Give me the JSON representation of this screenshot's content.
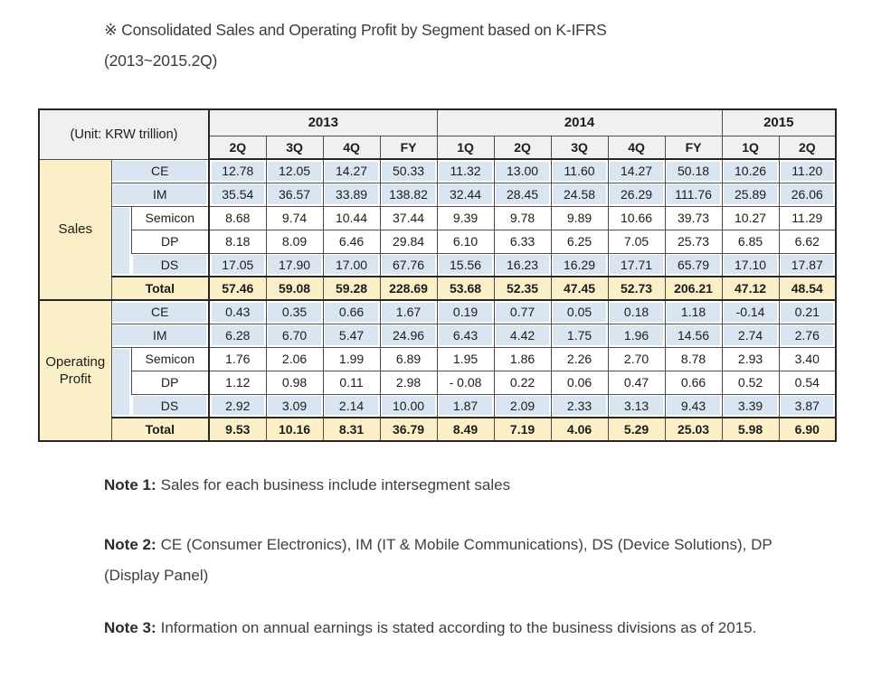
{
  "title": "※ Consolidated Sales and Operating Profit by Segment based on K-IFRS (2013~2015.2Q)",
  "table": {
    "unit_label": "(Unit: KRW trillion)",
    "year_groups": [
      {
        "label": "2013",
        "quarters": [
          "2Q",
          "3Q",
          "4Q",
          "FY"
        ]
      },
      {
        "label": "2014",
        "quarters": [
          "1Q",
          "2Q",
          "3Q",
          "4Q",
          "FY"
        ]
      },
      {
        "label": "2015",
        "quarters": [
          "1Q",
          "2Q"
        ]
      }
    ],
    "sections": [
      {
        "key": "sales",
        "label": "Sales",
        "rows": [
          {
            "segment": "CE",
            "style": "blue",
            "span": "full",
            "values": [
              "12.78",
              "12.05",
              "14.27",
              "50.33",
              "11.32",
              "13.00",
              "11.60",
              "14.27",
              "50.18",
              "10.26",
              "11.20"
            ]
          },
          {
            "segment": "IM",
            "style": "blue",
            "span": "full",
            "values": [
              "35.54",
              "36.57",
              "33.89",
              "138.82",
              "32.44",
              "28.45",
              "24.58",
              "26.29",
              "111.76",
              "25.89",
              "26.06"
            ]
          },
          {
            "segment": "Semicon",
            "style": "white",
            "span": "sub",
            "indent_start": true,
            "values": [
              "8.68",
              "9.74",
              "10.44",
              "37.44",
              "9.39",
              "9.78",
              "9.89",
              "10.66",
              "39.73",
              "10.27",
              "11.29"
            ]
          },
          {
            "segment": "DP",
            "style": "white",
            "span": "sub",
            "values": [
              "8.18",
              "8.09",
              "6.46",
              "29.84",
              "6.10",
              "6.33",
              "6.25",
              "7.05",
              "25.73",
              "6.85",
              "6.62"
            ]
          },
          {
            "segment": "DS",
            "style": "blue",
            "span": "sub-flush",
            "values": [
              "17.05",
              "17.90",
              "17.00",
              "67.76",
              "15.56",
              "16.23",
              "16.29",
              "17.71",
              "65.79",
              "17.10",
              "17.87"
            ]
          },
          {
            "segment": "Total",
            "style": "total",
            "span": "full",
            "values": [
              "57.46",
              "59.08",
              "59.28",
              "228.69",
              "53.68",
              "52.35",
              "47.45",
              "52.73",
              "206.21",
              "47.12",
              "48.54"
            ]
          }
        ]
      },
      {
        "key": "operating-profit",
        "label": "Operating Profit",
        "rows": [
          {
            "segment": "CE",
            "style": "blue",
            "span": "full",
            "values": [
              "0.43",
              "0.35",
              "0.66",
              "1.67",
              "0.19",
              "0.77",
              "0.05",
              "0.18",
              "1.18",
              "-0.14",
              "0.21"
            ]
          },
          {
            "segment": "IM",
            "style": "blue",
            "span": "full",
            "values": [
              "6.28",
              "6.70",
              "5.47",
              "24.96",
              "6.43",
              "4.42",
              "1.75",
              "1.96",
              "14.56",
              "2.74",
              "2.76"
            ]
          },
          {
            "segment": "Semicon",
            "style": "white",
            "span": "sub",
            "indent_start": true,
            "values": [
              "1.76",
              "2.06",
              "1.99",
              "6.89",
              "1.95",
              "1.86",
              "2.26",
              "2.70",
              "8.78",
              "2.93",
              "3.40"
            ]
          },
          {
            "segment": "DP",
            "style": "white",
            "span": "sub",
            "values": [
              "1.12",
              "0.98",
              "0.11",
              "2.98",
              "- 0.08",
              "0.22",
              "0.06",
              "0.47",
              "0.66",
              "0.52",
              "0.54"
            ]
          },
          {
            "segment": "DS",
            "style": "blue",
            "span": "sub-flush",
            "values": [
              "2.92",
              "3.09",
              "2.14",
              "10.00",
              "1.87",
              "2.09",
              "2.33",
              "3.13",
              "9.43",
              "3.39",
              "3.87"
            ]
          },
          {
            "segment": "Total",
            "style": "total",
            "span": "full",
            "values": [
              "9.53",
              "10.16",
              "8.31",
              "36.79",
              "8.49",
              "7.19",
              "4.06",
              "5.29",
              "25.03",
              "5.98",
              "6.90"
            ]
          }
        ]
      }
    ],
    "colors": {
      "header_bg": "#f0f0f0",
      "blue_bg": "#d9e5f1",
      "accent_bg": "#faefc7",
      "border": "#4d4d4d",
      "outer_border": "#262626"
    }
  },
  "notes": [
    {
      "label": "Note 1:",
      "text": "Sales for each business include intersegment sales"
    },
    {
      "label": "Note 2:",
      "text": "CE (Consumer Electronics), IM (IT & Mobile Communications), DS (Device Solutions), DP (Display Panel)"
    },
    {
      "label": "Note 3:",
      "text": "Information on annual earnings is stated according to the business divisions as of 2015."
    }
  ]
}
